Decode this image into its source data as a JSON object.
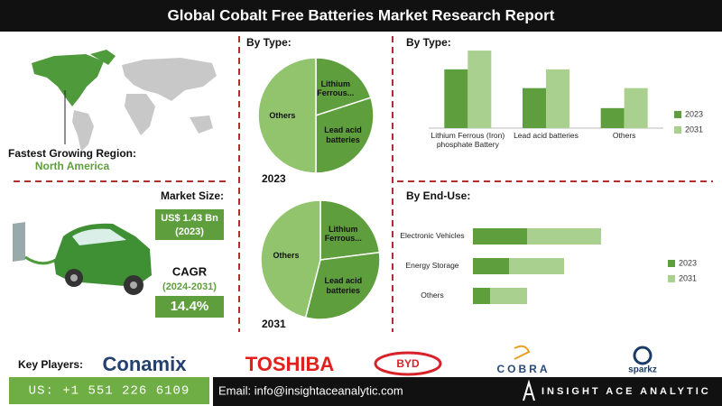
{
  "header": {
    "title": "Global Cobalt Free Batteries Market Research Report"
  },
  "region": {
    "label": "Fastest Growing Region:",
    "value": "North America"
  },
  "market_size": {
    "label": "Market Size:",
    "value": "US$ 1.43 Bn",
    "year": "(2023)"
  },
  "cagr": {
    "label": "CAGR",
    "period": "(2024-2031)",
    "value": "14.4%"
  },
  "players": {
    "label": "Key Players:",
    "logos": [
      "Conamix",
      "TOSHIBA",
      "BYD",
      "COBRA",
      "sparkz"
    ]
  },
  "footer": {
    "phone": "US: +1 551 226 6109",
    "email": "Email: info@insightaceanalytic.com",
    "brand": "INSIGHT ACE ANALYTIC"
  },
  "chart_data": [
    {
      "type": "pie",
      "title": "By Type:",
      "subtitle": "2023",
      "categories": [
        "Lithium Ferrous...",
        "Lead acid batteries",
        "Others"
      ],
      "values": [
        20,
        30,
        50
      ],
      "colors": [
        "#5e9e3c",
        "#5e9e3c",
        "#92c46e"
      ]
    },
    {
      "type": "pie",
      "subtitle": "2031",
      "categories": [
        "Lithium Ferrous...",
        "Lead acid batteries",
        "Others"
      ],
      "values": [
        23,
        31,
        46
      ],
      "colors": [
        "#5e9e3c",
        "#5e9e3c",
        "#92c46e"
      ]
    },
    {
      "type": "bar",
      "title": "By Type:",
      "categories": [
        "Lithium Ferrous (Iron) phosphate Battery",
        "Lead acid batteries",
        "Others"
      ],
      "series": [
        {
          "name": "2023",
          "color": "#5e9e3c",
          "values": [
            47,
            32,
            16
          ]
        },
        {
          "name": "2031",
          "color": "#a9d08e",
          "values": [
            62,
            47,
            32
          ]
        }
      ],
      "ylim": [
        0,
        70
      ],
      "legend": "right"
    },
    {
      "type": "hbar",
      "title": "By End-Use:",
      "stacked": true,
      "categories": [
        "Electronic Vehicles",
        "Energy Storage",
        "Others"
      ],
      "series": [
        {
          "name": "2023",
          "color": "#5e9e3c",
          "values": [
            60,
            40,
            19
          ]
        },
        {
          "name": "2031",
          "color": "#a9d08e",
          "values": [
            82,
            61,
            41
          ]
        }
      ],
      "xlim": [
        0,
        150
      ],
      "legend": "right"
    }
  ]
}
